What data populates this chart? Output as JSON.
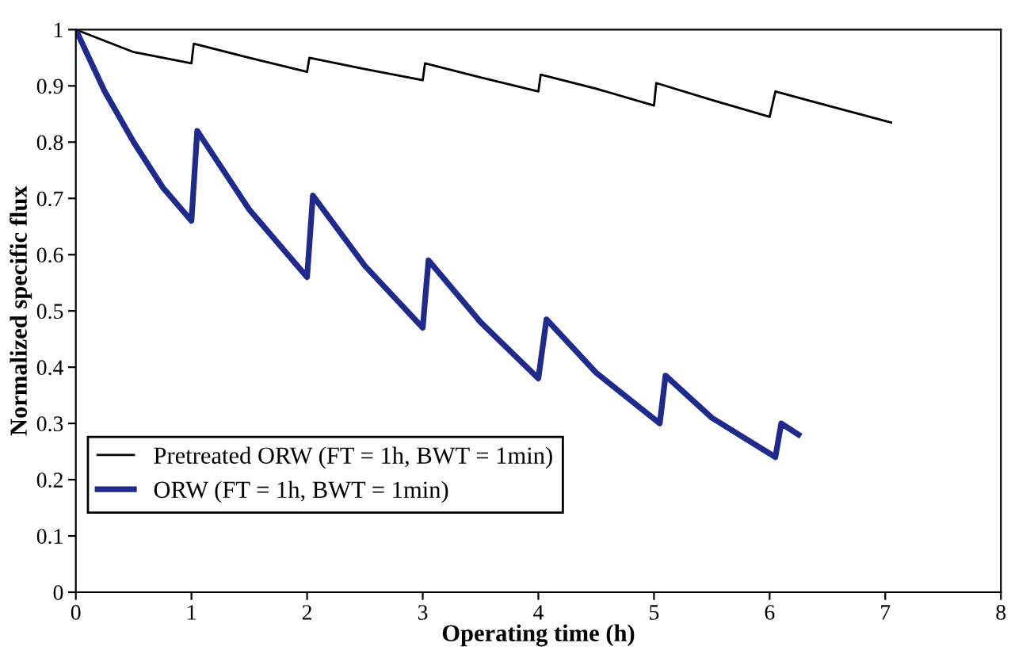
{
  "chart_data": {
    "type": "line",
    "xlabel": "Operating time (h)",
    "ylabel": "Normalized specific flux",
    "xlim": [
      0,
      8
    ],
    "ylim": [
      0,
      1
    ],
    "xticks": [
      0,
      1,
      2,
      3,
      4,
      5,
      6,
      7,
      8
    ],
    "yticks": [
      0,
      0.1,
      0.2,
      0.3,
      0.4,
      0.5,
      0.6,
      0.7,
      0.8,
      0.9,
      1
    ],
    "grid": false,
    "legend": "bottom left",
    "marker": "none",
    "line_style": "solid",
    "series": [
      {
        "name": "Pretreated ORW (FT = 1h, BWT = 1min)",
        "color": "#000000",
        "x": [
          0,
          0.5,
          1.0,
          1.02,
          1.5,
          2.0,
          2.02,
          2.5,
          3.0,
          3.02,
          3.5,
          4.0,
          4.02,
          4.5,
          5.0,
          5.02,
          5.5,
          6.0,
          6.05,
          6.5,
          7.05
        ],
        "values": [
          1,
          0.96,
          0.94,
          0.975,
          0.95,
          0.925,
          0.95,
          0.93,
          0.91,
          0.94,
          0.915,
          0.89,
          0.92,
          0.895,
          0.865,
          0.905,
          0.875,
          0.845,
          0.89,
          0.865,
          0.835
        ]
      },
      {
        "name": "ORW (FT = 1h, BWT = 1min)",
        "color": "#1f2a8c",
        "x": [
          0,
          0.25,
          0.5,
          0.75,
          1.0,
          1.05,
          1.5,
          2.0,
          2.05,
          2.5,
          3.0,
          3.05,
          3.5,
          4.0,
          4.07,
          4.5,
          5.05,
          5.1,
          5.5,
          6.05,
          6.1,
          6.25
        ],
        "values": [
          1,
          0.89,
          0.8,
          0.72,
          0.66,
          0.82,
          0.68,
          0.56,
          0.705,
          0.58,
          0.47,
          0.59,
          0.48,
          0.38,
          0.485,
          0.39,
          0.3,
          0.385,
          0.31,
          0.24,
          0.3,
          0.28
        ]
      }
    ]
  }
}
